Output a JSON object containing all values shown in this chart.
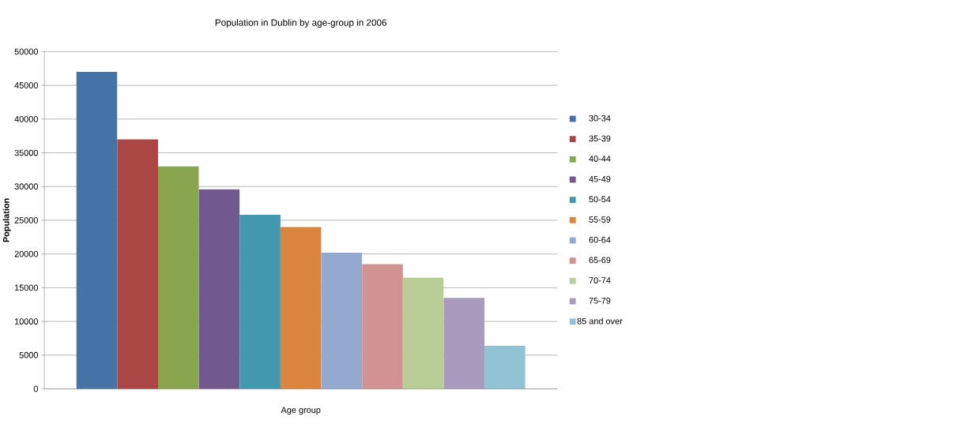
{
  "chart_data": {
    "type": "bar",
    "title": "Population in Dublin by age-group in 2006",
    "xlabel": "Age group",
    "ylabel": "Population",
    "categories": [
      null
    ],
    "series": [
      {
        "name": "30-34",
        "color": "#4572a7",
        "values": [
          47000
        ]
      },
      {
        "name": "35-39",
        "color": "#aa4643",
        "values": [
          37000
        ]
      },
      {
        "name": "40-44",
        "color": "#89a54e",
        "values": [
          33000
        ]
      },
      {
        "name": "45-49",
        "color": "#71588f",
        "values": [
          29600
        ]
      },
      {
        "name": "50-54",
        "color": "#4198af",
        "values": [
          25800
        ]
      },
      {
        "name": "55-59",
        "color": "#db843d",
        "values": [
          24000
        ]
      },
      {
        "name": "60-64",
        "color": "#93a9cf",
        "values": [
          20200
        ]
      },
      {
        "name": "65-69",
        "color": "#d19392",
        "values": [
          18500
        ]
      },
      {
        "name": "70-74",
        "color": "#b9cd96",
        "values": [
          16500
        ]
      },
      {
        "name": "75-79",
        "color": "#a99bbd",
        "values": [
          13500
        ]
      },
      {
        "name": "85 and over",
        "color": "#92c3d4",
        "values": [
          6400
        ]
      }
    ],
    "ylim": [
      0,
      50000
    ],
    "yticks": [
      0,
      5000,
      10000,
      15000,
      20000,
      25000,
      30000,
      35000,
      40000,
      45000,
      50000
    ],
    "grid": "y",
    "legend": "right"
  }
}
